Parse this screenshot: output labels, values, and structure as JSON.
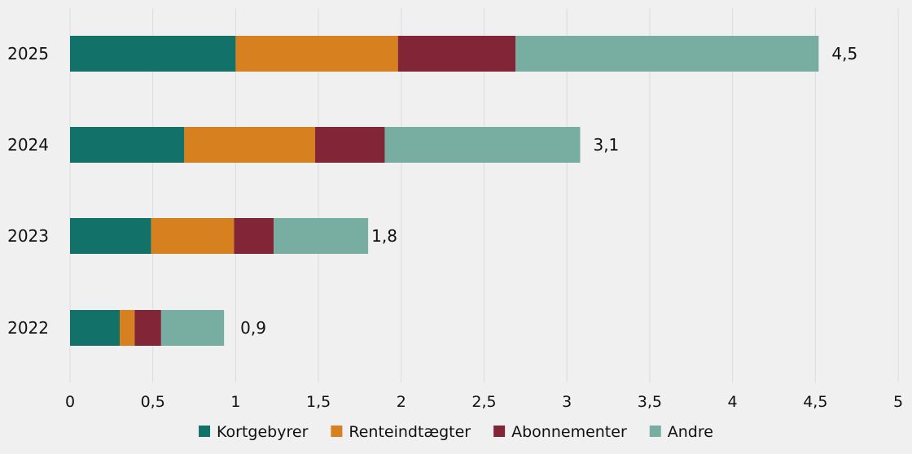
{
  "chart_data": {
    "type": "bar",
    "orientation": "horizontal",
    "stacked": true,
    "categories": [
      "2025",
      "2024",
      "2023",
      "2022"
    ],
    "series": [
      {
        "name": "Kortgebyrer",
        "color": "#127169",
        "values": [
          1.0,
          0.69,
          0.49,
          0.3
        ]
      },
      {
        "name": "Renteindtægter",
        "color": "#d6801f",
        "values": [
          0.98,
          0.79,
          0.5,
          0.09
        ]
      },
      {
        "name": "Abonnementer",
        "color": "#812537",
        "values": [
          0.71,
          0.42,
          0.24,
          0.16
        ]
      },
      {
        "name": "Andre",
        "color": "#78ada1",
        "values": [
          1.83,
          1.18,
          0.57,
          0.38
        ]
      }
    ],
    "totals": [
      "4,5",
      "3,1",
      "1,8",
      "0,9"
    ],
    "xticks": [
      0,
      0.5,
      1,
      1.5,
      2,
      2.5,
      3,
      3.5,
      4,
      4.5,
      5
    ],
    "xtick_labels": [
      "0",
      "0,5",
      "1",
      "1,5",
      "2",
      "2,5",
      "3",
      "3,5",
      "4",
      "4,5",
      "5"
    ],
    "xlim": [
      0,
      5
    ],
    "title": "",
    "xlabel": "",
    "ylabel": "",
    "grid": "vertical",
    "legend_position": "bottom"
  }
}
